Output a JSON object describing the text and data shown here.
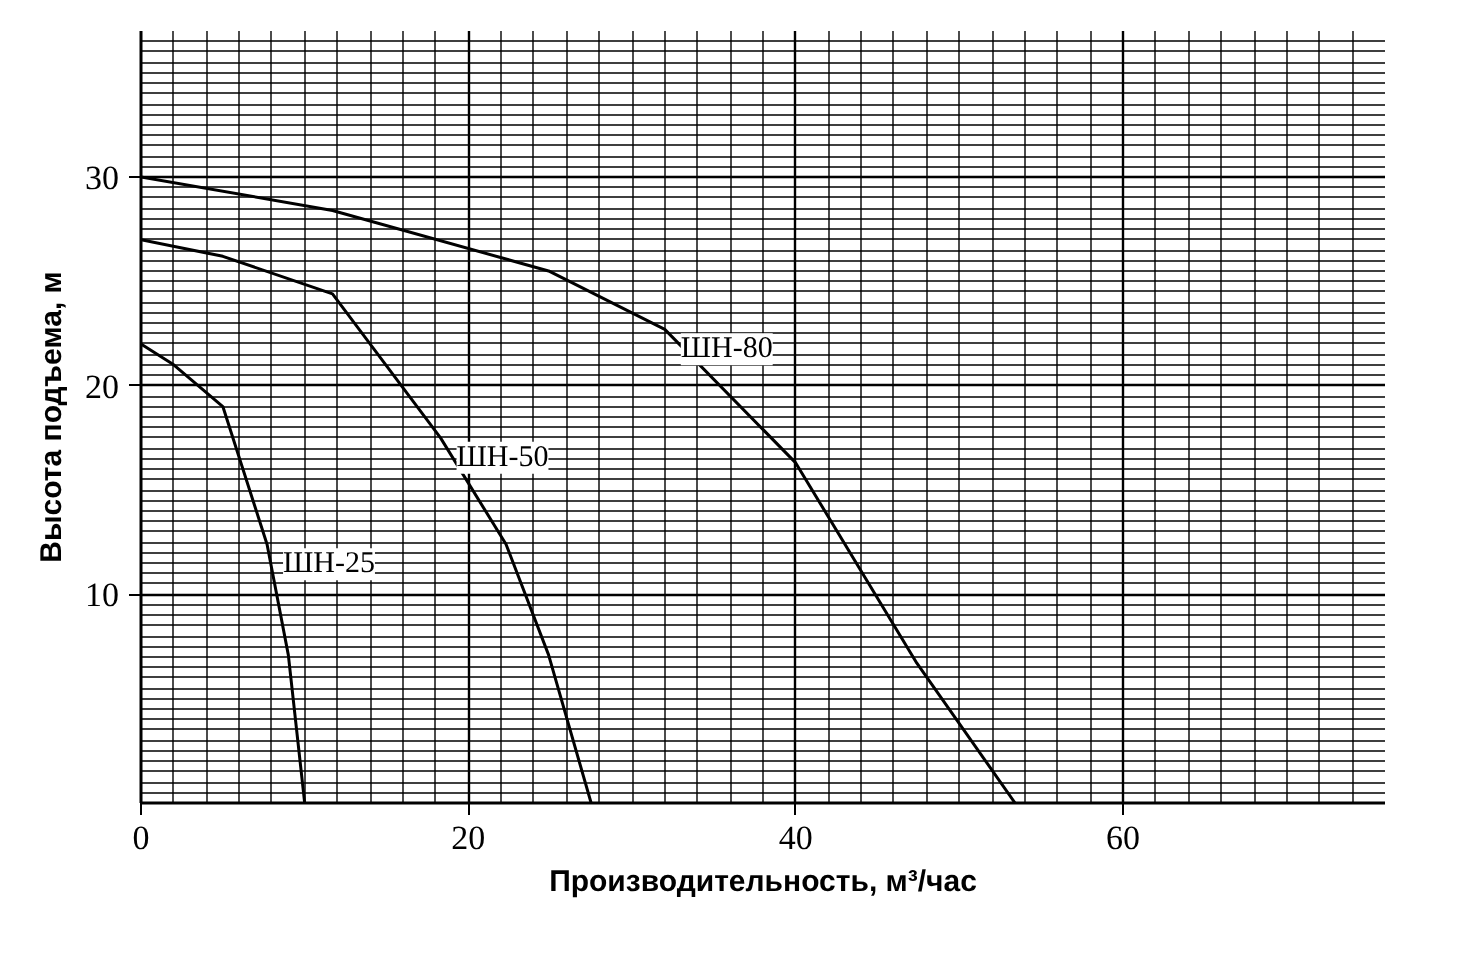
{
  "chart_data": {
    "type": "line",
    "xlabel": "Производительность, м³/час",
    "ylabel": "Высота подъема, м",
    "xlim": [
      0,
      76
    ],
    "ylim": [
      0,
      37
    ],
    "xticks": [
      0,
      20,
      40,
      60
    ],
    "yticks": [
      10,
      20,
      30
    ],
    "grid": true,
    "legend": false,
    "marker": "none",
    "line_style": "solid",
    "series": [
      {
        "name": "ШН-25",
        "color": "#000000",
        "x": [
          0,
          2,
          5,
          7.7,
          9,
          10
        ],
        "values": [
          22,
          21,
          19,
          12.4,
          7.1,
          0
        ]
      },
      {
        "name": "ШН-50",
        "color": "#000000",
        "x": [
          0,
          5,
          11.7,
          18.3,
          22.3,
          24.9,
          27.5
        ],
        "values": [
          27,
          26.2,
          24.4,
          17.5,
          12.4,
          7.1,
          0
        ]
      },
      {
        "name": "ШН-80",
        "color": "#000000",
        "x": [
          0,
          11.7,
          24.9,
          32,
          40,
          47.4,
          53.4
        ],
        "values": [
          30,
          28.4,
          25.5,
          22.7,
          16.3,
          6.7,
          0
        ]
      }
    ]
  }
}
